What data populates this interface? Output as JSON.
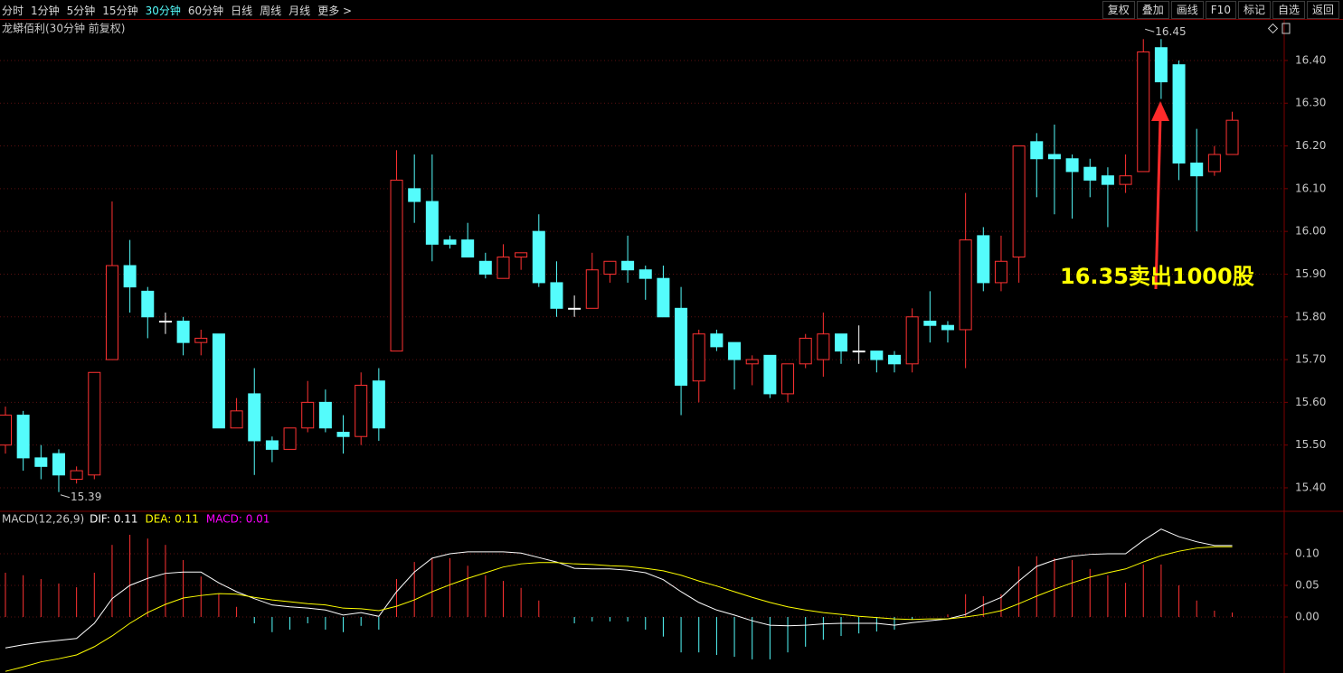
{
  "toolbar": {
    "tabs": [
      {
        "label": "分时"
      },
      {
        "label": "1分钟"
      },
      {
        "label": "5分钟"
      },
      {
        "label": "15分钟"
      },
      {
        "label": "30分钟",
        "active": true
      },
      {
        "label": "60分钟"
      },
      {
        "label": "日线"
      },
      {
        "label": "周线"
      },
      {
        "label": "月线"
      },
      {
        "label": "更多 >"
      }
    ],
    "buttons": [
      "复权",
      "叠加",
      "画线",
      "F10",
      "标记",
      "自选",
      "返回"
    ]
  },
  "chart_data": [
    {
      "type": "candlestick",
      "subtitle": "龙蟒佰利(30分钟 前复权)",
      "up_color": "#ff3232",
      "down_color": "#54fcfc",
      "doji_color": "#ffffff",
      "open": [
        15.5,
        15.57,
        15.47,
        15.48,
        15.42,
        15.43,
        15.7,
        15.92,
        15.86,
        15.79,
        15.79,
        15.74,
        15.76,
        15.54,
        15.62,
        15.51,
        15.49,
        15.54,
        15.6,
        15.53,
        15.52,
        15.65,
        15.72,
        16.1,
        16.07,
        15.98,
        15.98,
        15.93,
        15.89,
        15.94,
        16.0,
        15.88,
        15.82,
        15.82,
        15.9,
        15.93,
        15.91,
        15.89,
        15.82,
        15.65,
        15.76,
        15.74,
        15.69,
        15.71,
        15.62,
        15.69,
        15.7,
        15.76,
        15.72,
        15.72,
        15.71,
        15.69,
        15.79,
        15.78,
        15.77,
        15.99,
        15.88,
        15.94,
        16.21,
        16.18,
        16.17,
        16.15,
        16.13,
        16.11,
        16.14,
        16.43,
        16.39,
        16.16,
        16.14,
        16.18
      ],
      "high": [
        15.59,
        15.58,
        15.5,
        15.49,
        15.45,
        15.67,
        16.07,
        15.98,
        15.87,
        15.81,
        15.8,
        15.77,
        15.76,
        15.61,
        15.68,
        15.52,
        15.54,
        15.65,
        15.63,
        15.57,
        15.67,
        15.68,
        16.19,
        16.18,
        16.18,
        15.99,
        16.02,
        15.95,
        15.97,
        15.95,
        16.04,
        15.93,
        15.85,
        15.95,
        15.93,
        15.99,
        15.92,
        15.92,
        15.87,
        15.77,
        15.77,
        15.74,
        15.71,
        15.71,
        15.69,
        15.76,
        15.81,
        15.76,
        15.78,
        15.72,
        15.72,
        15.82,
        15.86,
        15.79,
        16.09,
        16.01,
        15.99,
        16.2,
        16.23,
        16.25,
        16.18,
        16.17,
        16.15,
        16.18,
        16.45,
        16.45,
        16.4,
        16.24,
        16.2,
        16.28
      ],
      "low": [
        15.48,
        15.44,
        15.42,
        15.39,
        15.41,
        15.42,
        15.7,
        15.81,
        15.75,
        15.76,
        15.71,
        15.71,
        15.54,
        15.54,
        15.43,
        15.46,
        15.49,
        15.53,
        15.53,
        15.48,
        15.5,
        15.51,
        15.72,
        16.02,
        15.93,
        15.96,
        15.94,
        15.89,
        15.89,
        15.91,
        15.87,
        15.8,
        15.8,
        15.82,
        15.88,
        15.88,
        15.84,
        15.8,
        15.57,
        15.6,
        15.72,
        15.63,
        15.64,
        15.61,
        15.6,
        15.68,
        15.66,
        15.69,
        15.69,
        15.67,
        15.67,
        15.67,
        15.74,
        15.74,
        15.68,
        15.86,
        15.86,
        15.88,
        16.08,
        16.04,
        16.03,
        16.08,
        16.01,
        16.09,
        16.14,
        16.31,
        16.12,
        16.0,
        16.13,
        16.18
      ],
      "close": [
        15.57,
        15.47,
        15.45,
        15.43,
        15.44,
        15.67,
        15.92,
        15.87,
        15.8,
        15.79,
        15.74,
        15.75,
        15.54,
        15.58,
        15.51,
        15.49,
        15.54,
        15.6,
        15.54,
        15.52,
        15.64,
        15.54,
        16.12,
        16.07,
        15.97,
        15.97,
        15.94,
        15.9,
        15.94,
        15.95,
        15.88,
        15.82,
        15.82,
        15.91,
        15.93,
        15.91,
        15.89,
        15.8,
        15.64,
        15.76,
        15.73,
        15.7,
        15.7,
        15.62,
        15.69,
        15.75,
        15.76,
        15.72,
        15.72,
        15.7,
        15.69,
        15.8,
        15.78,
        15.77,
        15.98,
        15.88,
        15.93,
        16.2,
        16.17,
        16.17,
        16.14,
        16.12,
        16.11,
        16.13,
        16.42,
        16.35,
        16.16,
        16.13,
        16.18,
        16.26
      ],
      "high_label": 16.45,
      "low_label": 15.39,
      "annotation": "16.35卖出1000股",
      "ylim": [
        15.345,
        16.495
      ],
      "yticks": [
        {
          "value": 15.4,
          "label": "15.40"
        },
        {
          "value": 15.5,
          "label": "15.50"
        },
        {
          "value": 15.6,
          "label": "15.60"
        },
        {
          "value": 15.7,
          "label": "15.70"
        },
        {
          "value": 15.8,
          "label": "15.80"
        },
        {
          "value": 15.9,
          "label": "15.90"
        },
        {
          "value": 16.0,
          "label": "16.00"
        },
        {
          "value": 16.1,
          "label": "16.10"
        },
        {
          "value": 16.2,
          "label": "16.20"
        },
        {
          "value": 16.3,
          "label": "16.30"
        },
        {
          "value": 16.4,
          "label": "16.40"
        }
      ],
      "grid": true
    },
    {
      "type": "macd",
      "legend_title": "MACD(12,26,9)",
      "series": [
        {
          "name": "DIF: 0.11",
          "type": "line",
          "color": "#ffffff",
          "values": [
            -0.049,
            -0.044,
            -0.04,
            -0.037,
            -0.034,
            -0.01,
            0.029,
            0.05,
            0.061,
            0.069,
            0.071,
            0.071,
            0.054,
            0.04,
            0.029,
            0.019,
            0.016,
            0.014,
            0.011,
            0.003,
            0.007,
            0.001,
            0.04,
            0.071,
            0.093,
            0.1,
            0.103,
            0.103,
            0.103,
            0.101,
            0.094,
            0.087,
            0.077,
            0.076,
            0.076,
            0.074,
            0.07,
            0.059,
            0.04,
            0.023,
            0.011,
            0.003,
            -0.006,
            -0.013,
            -0.014,
            -0.013,
            -0.011,
            -0.01,
            -0.01,
            -0.01,
            -0.013,
            -0.009,
            -0.006,
            -0.003,
            0.004,
            0.019,
            0.031,
            0.057,
            0.08,
            0.09,
            0.096,
            0.099,
            0.1,
            0.1,
            0.121,
            0.139,
            0.127,
            0.119,
            0.113,
            0.113
          ]
        },
        {
          "name": "DEA: 0.11",
          "type": "line",
          "color": "#ffff00",
          "values": [
            -0.086,
            -0.079,
            -0.071,
            -0.066,
            -0.06,
            -0.047,
            -0.03,
            -0.01,
            0.007,
            0.02,
            0.03,
            0.034,
            0.037,
            0.036,
            0.031,
            0.027,
            0.024,
            0.021,
            0.019,
            0.014,
            0.013,
            0.01,
            0.017,
            0.027,
            0.04,
            0.051,
            0.061,
            0.07,
            0.079,
            0.084,
            0.086,
            0.086,
            0.084,
            0.083,
            0.081,
            0.08,
            0.077,
            0.073,
            0.066,
            0.057,
            0.049,
            0.04,
            0.031,
            0.023,
            0.016,
            0.011,
            0.007,
            0.004,
            0.001,
            -0.001,
            -0.003,
            -0.004,
            -0.003,
            -0.003,
            0,
            0.004,
            0.01,
            0.021,
            0.033,
            0.044,
            0.054,
            0.063,
            0.07,
            0.076,
            0.087,
            0.097,
            0.104,
            0.109,
            0.111,
            0.111
          ]
        },
        {
          "name": "MACD: 0.01",
          "type": "bar",
          "color": "#ff00ff",
          "up_color": "#ff3232",
          "down_color": "#54fcfc",
          "values": [
            0.07,
            0.066,
            0.06,
            0.053,
            0.047,
            0.07,
            0.114,
            0.13,
            0.124,
            0.114,
            0.09,
            0.064,
            0.036,
            0.016,
            -0.01,
            -0.024,
            -0.02,
            -0.01,
            -0.02,
            -0.024,
            -0.014,
            -0.02,
            0.06,
            0.087,
            0.093,
            0.093,
            0.081,
            0.066,
            0.057,
            0.046,
            0.026,
            0,
            -0.01,
            -0.007,
            -0.007,
            -0.007,
            -0.02,
            -0.031,
            -0.056,
            -0.056,
            -0.06,
            -0.063,
            -0.067,
            -0.067,
            -0.056,
            -0.047,
            -0.036,
            -0.03,
            -0.026,
            -0.023,
            -0.02,
            -0.004,
            0,
            0.004,
            0.036,
            0.033,
            0.036,
            0.08,
            0.096,
            0.093,
            0.09,
            0.076,
            0.066,
            0.054,
            0.083,
            0.083,
            0.05,
            0.026,
            0.01,
            0.007
          ]
        }
      ],
      "ylim": [
        -0.0886,
        0.1657
      ],
      "yticks": [
        {
          "value": 0,
          "label": "0.00"
        },
        {
          "value": 0.05,
          "label": "0.05"
        },
        {
          "value": 0.1,
          "label": "0.10"
        }
      ],
      "grid": true
    }
  ]
}
